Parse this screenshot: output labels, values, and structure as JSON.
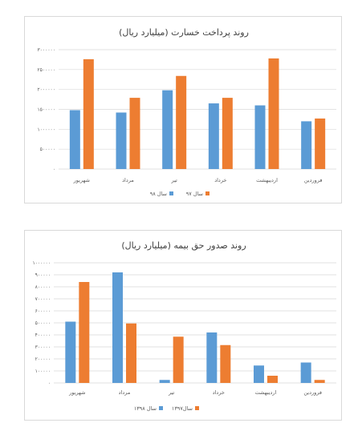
{
  "colors": {
    "blue": "#5b9bd5",
    "orange": "#ed7d31",
    "grid": "#d9d9d9",
    "text": "#595959"
  },
  "chart_data": [
    {
      "type": "bar",
      "title": "روند پرداخت خسارت (میلیارد ریال)",
      "categories": [
        "فروردین",
        "اردیبهشت",
        "خرداد",
        "تیر",
        "مرداد",
        "شهریور"
      ],
      "series": [
        {
          "name": "سال ۹۸",
          "color": "#5b9bd5",
          "values": [
            1200000,
            1600000,
            1650000,
            1980000,
            1420000,
            1480000
          ]
        },
        {
          "name": "سال ۹۷",
          "color": "#ed7d31",
          "values": [
            1270000,
            2780000,
            1790000,
            2340000,
            1790000,
            2760000
          ]
        }
      ],
      "ylim": [
        0,
        3000000
      ],
      "yticks": [
        "۰",
        "۵۰۰۰۰۰",
        "۱۰۰۰۰۰۰",
        "۱۵۰۰۰۰۰",
        "۲۰۰۰۰۰۰",
        "۲۵۰۰۰۰۰",
        "۳۰۰۰۰۰۰"
      ],
      "grid": true,
      "legend": "bottom"
    },
    {
      "type": "bar",
      "title": "روند صدور حق بیمه (میلیارد ریال)",
      "categories": [
        "فروردین",
        "اردیبهشت",
        "خرداد",
        "تیر",
        "مرداد",
        "شهریور"
      ],
      "series": [
        {
          "name": "سال ۱۳۹۸",
          "color": "#5b9bd5",
          "values": [
            170000,
            145000,
            420000,
            25000,
            920000,
            510000
          ]
        },
        {
          "name": "سال۱۳۹۷",
          "color": "#ed7d31",
          "values": [
            25000,
            60000,
            315000,
            385000,
            495000,
            840000
          ]
        }
      ],
      "ylim": [
        0,
        1000000
      ],
      "yticks": [
        "۰",
        "۱۰۰۰۰۰",
        "۲۰۰۰۰۰",
        "۳۰۰۰۰۰",
        "۴۰۰۰۰۰",
        "۵۰۰۰۰۰",
        "۶۰۰۰۰۰",
        "۷۰۰۰۰۰",
        "۸۰۰۰۰۰",
        "۹۰۰۰۰۰",
        "۱۰۰۰۰۰۰"
      ],
      "grid": true,
      "legend": "bottom"
    }
  ]
}
